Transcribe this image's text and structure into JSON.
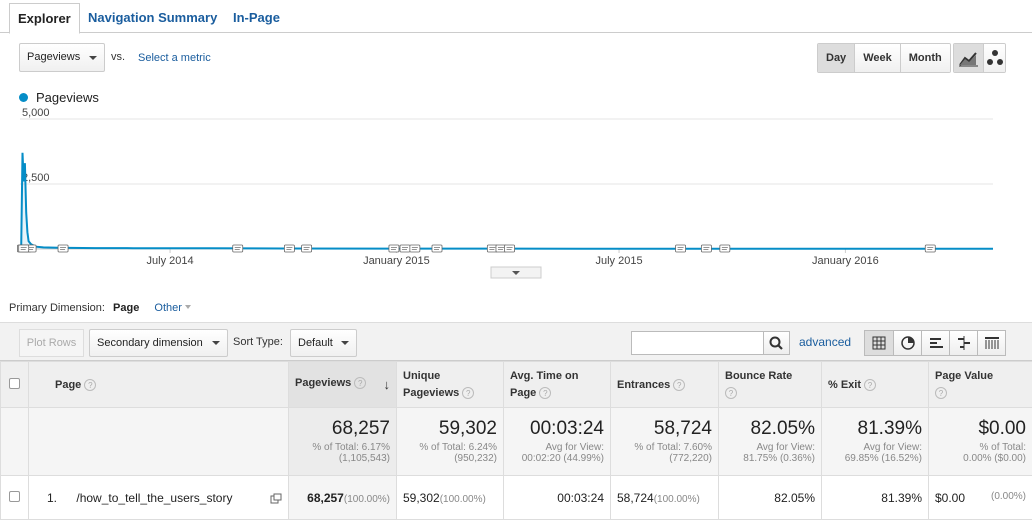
{
  "tabs": [
    "Explorer",
    "Navigation Summary",
    "In-Page"
  ],
  "metric_select": "Pageviews",
  "vs_label": "vs.",
  "select_metric": "Select a metric",
  "granularity": [
    "Day",
    "Week",
    "Month"
  ],
  "selected_granularity": "Day",
  "chart_type_icons": [
    "line-chart-icon",
    "motion-chart-icon"
  ],
  "colors": {
    "series": "#058dc7",
    "link": "#1a5d9e"
  },
  "chart_data": {
    "type": "line",
    "series": [
      {
        "name": "Pageviews"
      }
    ],
    "y_ticks": [
      "5,000",
      "2,500"
    ],
    "x_ticks": [
      "July 2014",
      "January 2015",
      "July 2015",
      "January 2016"
    ],
    "ylim": [
      0,
      5000
    ],
    "x_range": [
      "2014-03-01",
      "2016-04-30"
    ],
    "points": [
      [
        "2014-03-01",
        30
      ],
      [
        "2014-03-02",
        60
      ],
      [
        "2014-03-03",
        3700
      ],
      [
        "2014-03-04",
        2600
      ],
      [
        "2014-03-05",
        3300
      ],
      [
        "2014-03-06",
        1400
      ],
      [
        "2014-03-07",
        650
      ],
      [
        "2014-03-08",
        300
      ],
      [
        "2014-03-10",
        180
      ],
      [
        "2014-03-14",
        90
      ],
      [
        "2014-03-20",
        60
      ],
      [
        "2014-04-01",
        45
      ],
      [
        "2014-05-01",
        35
      ],
      [
        "2014-06-01",
        30
      ],
      [
        "2014-08-01",
        25
      ],
      [
        "2014-10-01",
        20
      ],
      [
        "2015-01-01",
        15
      ],
      [
        "2015-06-01",
        12
      ],
      [
        "2016-01-01",
        10
      ],
      [
        "2016-04-30",
        10
      ]
    ],
    "annotation_count": 19
  },
  "primary_dimension_label": "Primary Dimension:",
  "primary_dimension_value": "Page",
  "primary_dimension_other": "Other",
  "toolbar": {
    "plot_rows": "Plot Rows",
    "secondary_dimension": "Secondary dimension",
    "sort_type_label": "Sort Type:",
    "sort_type_value": "Default",
    "search_value": "",
    "advanced": "advanced"
  },
  "view_icons": [
    "table-view-icon",
    "pie-view-icon",
    "performance-view-icon",
    "comparison-view-icon",
    "pivot-view-icon"
  ],
  "table": {
    "headers": [
      "Page",
      "Pageviews",
      "Unique Pageviews",
      "Avg. Time on Page",
      "Entrances",
      "Bounce Rate",
      "% Exit",
      "Page Value"
    ],
    "totals": [
      {
        "value": "68,257",
        "sub1": "% of Total: 6.17%",
        "sub2": "(1,105,543)"
      },
      {
        "value": "59,302",
        "sub1": "% of Total: 6.24%",
        "sub2": "(950,232)"
      },
      {
        "value": "00:03:24",
        "sub1": "Avg for View:",
        "sub2": "00:02:20 (44.99%)"
      },
      {
        "value": "58,724",
        "sub1": "% of Total: 7.60%",
        "sub2": "(772,220)"
      },
      {
        "value": "82.05%",
        "sub1": "Avg for View:",
        "sub2": "81.75% (0.36%)"
      },
      {
        "value": "81.39%",
        "sub1": "Avg for View:",
        "sub2": "69.85% (16.52%)"
      },
      {
        "value": "$0.00",
        "sub1": "% of Total:",
        "sub2": "0.00% ($0.00)"
      }
    ],
    "rows": [
      {
        "index": "1.",
        "page": "/how_to_tell_the_users_story",
        "pageviews": "68,257",
        "pageviews_pct": "(100.00%)",
        "unique": "59,302",
        "unique_pct": "(100.00%)",
        "avg_time": "00:03:24",
        "entrances": "58,724",
        "entrances_pct": "(100.00%)",
        "bounce": "82.05%",
        "exit": "81.39%",
        "value": "$0.00",
        "value_pct": "(0.00%)"
      }
    ]
  }
}
